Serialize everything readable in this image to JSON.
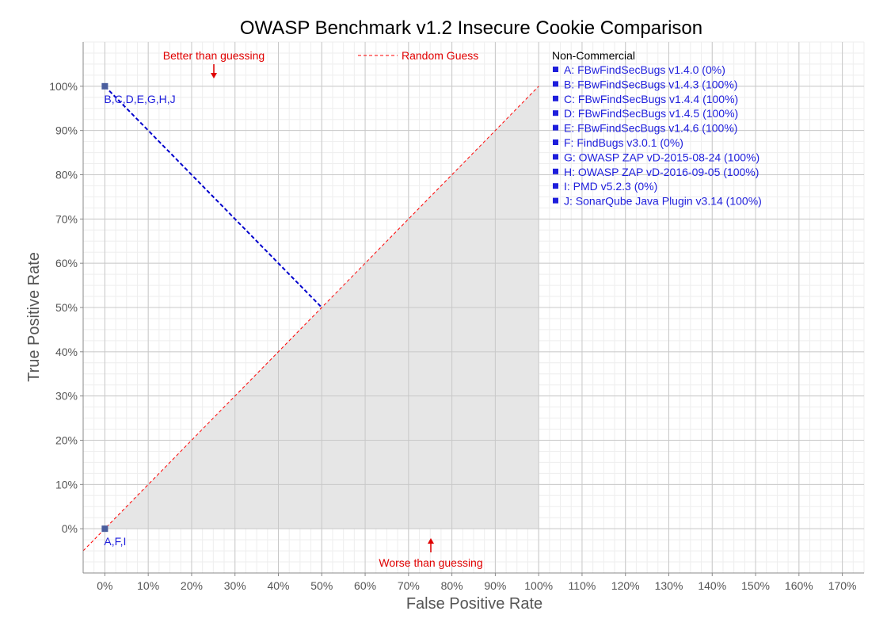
{
  "chart_data": {
    "type": "scatter",
    "title": "OWASP Benchmark v1.2 Insecure Cookie Comparison",
    "xlabel": "False Positive Rate",
    "ylabel": "True Positive Rate",
    "xlim": [
      -5,
      175
    ],
    "ylim": [
      -10,
      110
    ],
    "x_ticks": [
      "0%",
      "10%",
      "20%",
      "30%",
      "40%",
      "50%",
      "60%",
      "70%",
      "80%",
      "90%",
      "100%",
      "110%",
      "120%",
      "130%",
      "140%",
      "150%",
      "160%",
      "170%"
    ],
    "y_ticks": [
      "0%",
      "10%",
      "20%",
      "30%",
      "40%",
      "50%",
      "60%",
      "70%",
      "80%",
      "90%",
      "100%"
    ],
    "grid": true,
    "points": [
      {
        "x": 0,
        "y": 100,
        "label": "B,C,D,E,G,H,J"
      },
      {
        "x": 0,
        "y": 0,
        "label": "A,F,I"
      }
    ],
    "best_line": {
      "from": [
        0,
        100
      ],
      "to": [
        50,
        50
      ]
    },
    "reference_line": {
      "name": "Random Guess",
      "from": [
        -5,
        -5
      ],
      "to": [
        100,
        100
      ],
      "color": "#ff0000"
    },
    "shaded_region": [
      [
        0,
        0
      ],
      [
        100,
        100
      ],
      [
        100,
        0
      ]
    ],
    "annotations": {
      "better": "Better than guessing",
      "worse": "Worse than guessing",
      "random_legend": "Random Guess"
    },
    "legend": {
      "placement": "right",
      "heading": "Non-Commercial",
      "items": [
        "A: FBwFindSecBugs v1.4.0 (0%)",
        "B: FBwFindSecBugs v1.4.3 (100%)",
        "C: FBwFindSecBugs v1.4.4 (100%)",
        "D: FBwFindSecBugs v1.4.5 (100%)",
        "E: FBwFindSecBugs v1.4.6 (100%)",
        "F: FindBugs v3.0.1 (0%)",
        "G: OWASP ZAP vD-2015-08-24 (100%)",
        "H: OWASP ZAP vD-2016-09-05 (100%)",
        "I:  PMD v5.2.3 (0%)",
        "J: SonarQube Java Plugin v3.14 (100%)"
      ]
    },
    "colors": {
      "point": "#4a5e9e",
      "best_line": "#0000cc",
      "random_line": "#ff0000",
      "shade": "#e6e6e6",
      "label_text": "#1e1edc",
      "annotation_text": "#e00000"
    }
  }
}
